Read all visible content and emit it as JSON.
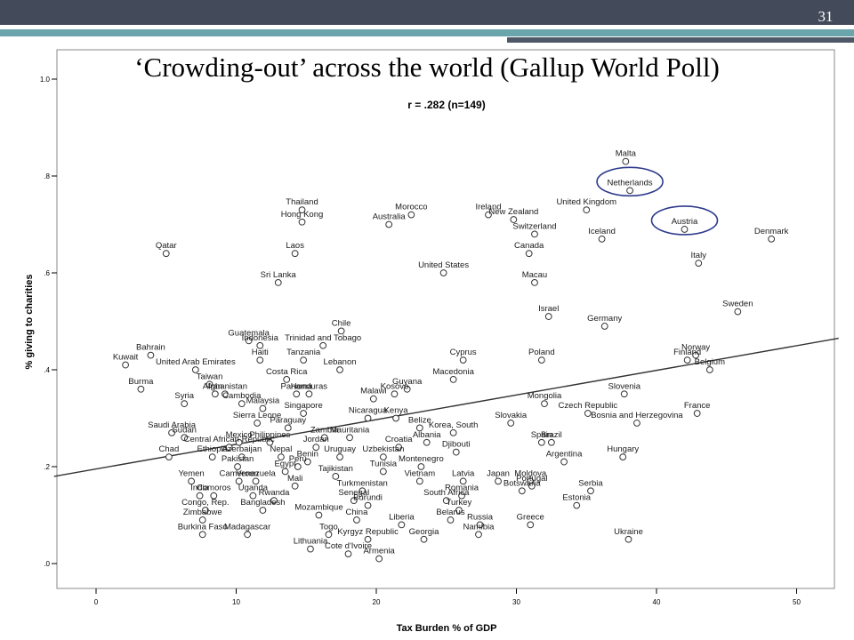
{
  "slide": {
    "number": "31",
    "title": "‘Crowding-out’ across the world (Gallup World Poll)"
  },
  "chart_data": {
    "type": "scatter",
    "xlabel": "Tax Burden % of GDP",
    "ylabel": "% giving to charities",
    "annotation": "r = .282 (n=149)",
    "xlim": [
      -3,
      53
    ],
    "ylim": [
      -0.05,
      1.06
    ],
    "xticks": [
      "0",
      "10",
      "20",
      "30",
      "40",
      "50"
    ],
    "yticks": [
      ".0",
      ".2",
      ".4",
      ".6",
      ".8",
      "1.0"
    ],
    "fit_line": {
      "x": [
        -3,
        53
      ],
      "y": [
        0.18,
        0.465
      ]
    },
    "highlighted": [
      "Netherlands",
      "Austria"
    ],
    "grid": false,
    "points": [
      {
        "name": "Malta",
        "x": 37.8,
        "y": 0.83
      },
      {
        "name": "Netherlands",
        "x": 38.1,
        "y": 0.77
      },
      {
        "name": "Austria",
        "x": 42.0,
        "y": 0.69
      },
      {
        "name": "Denmark",
        "x": 48.2,
        "y": 0.67
      },
      {
        "name": "United Kingdom",
        "x": 35.0,
        "y": 0.73
      },
      {
        "name": "Iceland",
        "x": 36.1,
        "y": 0.67
      },
      {
        "name": "Italy",
        "x": 43.0,
        "y": 0.62
      },
      {
        "name": "Thailand",
        "x": 14.7,
        "y": 0.73
      },
      {
        "name": "Hong Kong",
        "x": 14.7,
        "y": 0.705
      },
      {
        "name": "Morocco",
        "x": 22.5,
        "y": 0.72
      },
      {
        "name": "Australia",
        "x": 20.9,
        "y": 0.7
      },
      {
        "name": "Ireland",
        "x": 28.0,
        "y": 0.72
      },
      {
        "name": "New Zealand",
        "x": 29.8,
        "y": 0.71
      },
      {
        "name": "Switzerland",
        "x": 31.3,
        "y": 0.68
      },
      {
        "name": "Canada",
        "x": 30.9,
        "y": 0.64
      },
      {
        "name": "Qatar",
        "x": 5.0,
        "y": 0.64
      },
      {
        "name": "Laos",
        "x": 14.2,
        "y": 0.64
      },
      {
        "name": "United States",
        "x": 24.8,
        "y": 0.6
      },
      {
        "name": "Macau",
        "x": 31.3,
        "y": 0.58
      },
      {
        "name": "Sri Lanka",
        "x": 13.0,
        "y": 0.58
      },
      {
        "name": "Sweden",
        "x": 45.8,
        "y": 0.52
      },
      {
        "name": "Israel",
        "x": 32.3,
        "y": 0.51
      },
      {
        "name": "Germany",
        "x": 36.3,
        "y": 0.49
      },
      {
        "name": "Chile",
        "x": 17.5,
        "y": 0.48
      },
      {
        "name": "Guatemala",
        "x": 10.9,
        "y": 0.46
      },
      {
        "name": "Indonesia",
        "x": 11.7,
        "y": 0.45
      },
      {
        "name": "Trinidad and Tobago",
        "x": 16.2,
        "y": 0.45
      },
      {
        "name": "Bahrain",
        "x": 3.9,
        "y": 0.43
      },
      {
        "name": "Haiti",
        "x": 11.7,
        "y": 0.42
      },
      {
        "name": "Tanzania",
        "x": 14.8,
        "y": 0.42
      },
      {
        "name": "Cyprus",
        "x": 26.2,
        "y": 0.42
      },
      {
        "name": "Poland",
        "x": 31.8,
        "y": 0.42
      },
      {
        "name": "Norway",
        "x": 42.8,
        "y": 0.43
      },
      {
        "name": "Finland",
        "x": 42.2,
        "y": 0.42
      },
      {
        "name": "Belgium",
        "x": 43.8,
        "y": 0.4
      },
      {
        "name": "Kuwait",
        "x": 2.1,
        "y": 0.41
      },
      {
        "name": "United Arab Emirates",
        "x": 7.1,
        "y": 0.4
      },
      {
        "name": "Taiwan",
        "x": 8.1,
        "y": 0.37
      },
      {
        "name": "Lebanon",
        "x": 17.4,
        "y": 0.4
      },
      {
        "name": "Costa Rica",
        "x": 13.6,
        "y": 0.38
      },
      {
        "name": "Guyana",
        "x": 22.2,
        "y": 0.36
      },
      {
        "name": "Macedonia",
        "x": 25.5,
        "y": 0.38
      },
      {
        "name": "Burma",
        "x": 3.2,
        "y": 0.36
      },
      {
        "name": "Afghanistan",
        "x": 9.2,
        "y": 0.35
      },
      {
        "name": "Iran",
        "x": 8.5,
        "y": 0.35
      },
      {
        "name": "Panama",
        "x": 14.3,
        "y": 0.35
      },
      {
        "name": "Honduras",
        "x": 15.2,
        "y": 0.35
      },
      {
        "name": "Kosovo",
        "x": 21.3,
        "y": 0.35
      },
      {
        "name": "Slovenia",
        "x": 37.7,
        "y": 0.35
      },
      {
        "name": "Malawi",
        "x": 19.8,
        "y": 0.34
      },
      {
        "name": "Mongolia",
        "x": 32.0,
        "y": 0.33
      },
      {
        "name": "Syria",
        "x": 6.3,
        "y": 0.33
      },
      {
        "name": "Cambodia",
        "x": 10.4,
        "y": 0.33
      },
      {
        "name": "Malaysia",
        "x": 11.9,
        "y": 0.32
      },
      {
        "name": "Singapore",
        "x": 14.8,
        "y": 0.31
      },
      {
        "name": "Nicaragua",
        "x": 19.4,
        "y": 0.3
      },
      {
        "name": "Kenya",
        "x": 21.4,
        "y": 0.3
      },
      {
        "name": "Czech Republic",
        "x": 35.1,
        "y": 0.31
      },
      {
        "name": "France",
        "x": 42.9,
        "y": 0.31
      },
      {
        "name": "Sierra Leone",
        "x": 11.5,
        "y": 0.29
      },
      {
        "name": "Paraguay",
        "x": 13.7,
        "y": 0.28
      },
      {
        "name": "Belize",
        "x": 23.1,
        "y": 0.28
      },
      {
        "name": "Slovakia",
        "x": 29.6,
        "y": 0.29
      },
      {
        "name": "Bosnia and Herzegovina",
        "x": 38.6,
        "y": 0.29
      },
      {
        "name": "Sudan",
        "x": 6.3,
        "y": 0.26
      },
      {
        "name": "Saudi Arabia",
        "x": 5.4,
        "y": 0.27
      },
      {
        "name": "Zambia",
        "x": 16.3,
        "y": 0.26
      },
      {
        "name": "Mauritania",
        "x": 18.1,
        "y": 0.26
      },
      {
        "name": "Korea, South",
        "x": 25.5,
        "y": 0.27
      },
      {
        "name": "Brazil",
        "x": 32.5,
        "y": 0.25
      },
      {
        "name": "Spain",
        "x": 31.8,
        "y": 0.25
      },
      {
        "name": "Philippines",
        "x": 12.4,
        "y": 0.25
      },
      {
        "name": "Mexico",
        "x": 10.2,
        "y": 0.25
      },
      {
        "name": "Croatia",
        "x": 21.6,
        "y": 0.24
      },
      {
        "name": "Albania",
        "x": 23.6,
        "y": 0.25
      },
      {
        "name": "Jordan",
        "x": 15.7,
        "y": 0.24
      },
      {
        "name": "Central African Republic",
        "x": 9.5,
        "y": 0.24
      },
      {
        "name": "Hungary",
        "x": 37.6,
        "y": 0.22
      },
      {
        "name": "Argentina",
        "x": 33.4,
        "y": 0.21
      },
      {
        "name": "Djibouti",
        "x": 25.7,
        "y": 0.23
      },
      {
        "name": "Ethiopia",
        "x": 8.3,
        "y": 0.22
      },
      {
        "name": "Azerbaijan",
        "x": 10.4,
        "y": 0.22
      },
      {
        "name": "Nepal",
        "x": 13.2,
        "y": 0.22
      },
      {
        "name": "Uruguay",
        "x": 17.4,
        "y": 0.22
      },
      {
        "name": "Benin",
        "x": 15.1,
        "y": 0.21
      },
      {
        "name": "Uzbekistan",
        "x": 20.5,
        "y": 0.22
      },
      {
        "name": "Chad",
        "x": 5.2,
        "y": 0.22
      },
      {
        "name": "Pakistan",
        "x": 10.1,
        "y": 0.2
      },
      {
        "name": "Peru",
        "x": 14.4,
        "y": 0.2
      },
      {
        "name": "Egypt",
        "x": 13.5,
        "y": 0.19
      },
      {
        "name": "Montenegro",
        "x": 23.2,
        "y": 0.2
      },
      {
        "name": "Tunisia",
        "x": 20.5,
        "y": 0.19
      },
      {
        "name": "Tajikistan",
        "x": 17.1,
        "y": 0.18
      },
      {
        "name": "Latvia",
        "x": 26.2,
        "y": 0.17
      },
      {
        "name": "Japan",
        "x": 28.7,
        "y": 0.17
      },
      {
        "name": "Moldova",
        "x": 31.0,
        "y": 0.17
      },
      {
        "name": "Yemen",
        "x": 6.8,
        "y": 0.17
      },
      {
        "name": "Cameroon",
        "x": 10.2,
        "y": 0.17
      },
      {
        "name": "Venezuela",
        "x": 11.4,
        "y": 0.17
      },
      {
        "name": "Mali",
        "x": 14.2,
        "y": 0.16
      },
      {
        "name": "Vietnam",
        "x": 23.1,
        "y": 0.17
      },
      {
        "name": "Portugal",
        "x": 31.1,
        "y": 0.16
      },
      {
        "name": "Serbia",
        "x": 35.3,
        "y": 0.15
      },
      {
        "name": "Uganda",
        "x": 11.2,
        "y": 0.14
      },
      {
        "name": "Turkmenistan",
        "x": 19.0,
        "y": 0.15
      },
      {
        "name": "Romania",
        "x": 26.1,
        "y": 0.14
      },
      {
        "name": "India",
        "x": 7.4,
        "y": 0.14
      },
      {
        "name": "Comoros",
        "x": 8.4,
        "y": 0.14
      },
      {
        "name": "Rwanda",
        "x": 12.7,
        "y": 0.13
      },
      {
        "name": "Senegal",
        "x": 18.4,
        "y": 0.13
      },
      {
        "name": "South Africa",
        "x": 25.0,
        "y": 0.13
      },
      {
        "name": "Botswana",
        "x": 30.4,
        "y": 0.15
      },
      {
        "name": "Congo, Rep.",
        "x": 7.8,
        "y": 0.11
      },
      {
        "name": "Bangladesh",
        "x": 11.9,
        "y": 0.11
      },
      {
        "name": "Burundi",
        "x": 19.4,
        "y": 0.12
      },
      {
        "name": "Turkey",
        "x": 25.9,
        "y": 0.11
      },
      {
        "name": "Estonia",
        "x": 34.3,
        "y": 0.12
      },
      {
        "name": "Zimbabwe",
        "x": 7.6,
        "y": 0.09
      },
      {
        "name": "Mozambique",
        "x": 15.9,
        "y": 0.1
      },
      {
        "name": "Belarus",
        "x": 25.3,
        "y": 0.09
      },
      {
        "name": "Russia",
        "x": 27.4,
        "y": 0.08
      },
      {
        "name": "Greece",
        "x": 31.0,
        "y": 0.08
      },
      {
        "name": "China",
        "x": 18.6,
        "y": 0.09
      },
      {
        "name": "Liberia",
        "x": 21.8,
        "y": 0.08
      },
      {
        "name": "Burkina Faso",
        "x": 7.6,
        "y": 0.06
      },
      {
        "name": "Madagascar",
        "x": 10.8,
        "y": 0.06
      },
      {
        "name": "Togo",
        "x": 16.6,
        "y": 0.06
      },
      {
        "name": "Kyrgyz Republic",
        "x": 19.4,
        "y": 0.05
      },
      {
        "name": "Namibia",
        "x": 27.3,
        "y": 0.06
      },
      {
        "name": "Georgia",
        "x": 23.4,
        "y": 0.05
      },
      {
        "name": "Ukraine",
        "x": 38.0,
        "y": 0.05
      },
      {
        "name": "Lithuania",
        "x": 15.3,
        "y": 0.03
      },
      {
        "name": "Cote d'Ivoire",
        "x": 18.0,
        "y": 0.02
      },
      {
        "name": "Armenia",
        "x": 20.2,
        "y": 0.01
      }
    ]
  }
}
